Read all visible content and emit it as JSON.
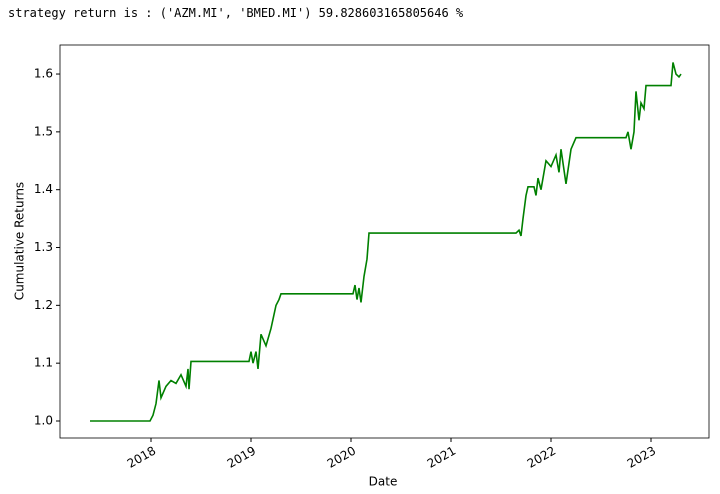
{
  "output_text": "strategy return is : ('AZM.MI', 'BMED.MI') 59.828603165805646 %",
  "chart_data": {
    "type": "line",
    "xlabel": "Date",
    "ylabel": "Cumulative Returns",
    "x": [
      2017.39,
      2017.99,
      2018.02,
      2018.05,
      2018.08,
      2018.1,
      2018.15,
      2018.2,
      2018.25,
      2018.3,
      2018.35,
      2018.37,
      2018.38,
      2018.4,
      2018.98,
      2019.0,
      2019.02,
      2019.05,
      2019.07,
      2019.1,
      2019.15,
      2019.2,
      2019.25,
      2019.28,
      2019.3,
      2020.02,
      2020.04,
      2020.06,
      2020.08,
      2020.1,
      2020.13,
      2020.16,
      2020.18,
      2021.65,
      2021.68,
      2021.7,
      2021.72,
      2021.75,
      2021.77,
      2021.83,
      2021.85,
      2021.87,
      2021.9,
      2021.95,
      2022.0,
      2022.05,
      2022.08,
      2022.1,
      2022.15,
      2022.2,
      2022.25,
      2022.75,
      2022.77,
      2022.8,
      2022.83,
      2022.85,
      2022.88,
      2022.9,
      2022.93,
      2022.95,
      2023.2,
      2023.22,
      2023.25,
      2023.28,
      2023.3
    ],
    "series": [
      {
        "name": "Cumulative Returns",
        "color": "#008000",
        "values": [
          1.0,
          1.0,
          1.01,
          1.03,
          1.07,
          1.04,
          1.06,
          1.07,
          1.065,
          1.08,
          1.06,
          1.09,
          1.055,
          1.103,
          1.103,
          1.12,
          1.1,
          1.12,
          1.09,
          1.15,
          1.13,
          1.16,
          1.2,
          1.21,
          1.22,
          1.22,
          1.235,
          1.21,
          1.23,
          1.205,
          1.25,
          1.28,
          1.325,
          1.325,
          1.33,
          1.32,
          1.35,
          1.39,
          1.405,
          1.405,
          1.39,
          1.42,
          1.4,
          1.45,
          1.44,
          1.46,
          1.43,
          1.47,
          1.41,
          1.47,
          1.49,
          1.49,
          1.5,
          1.47,
          1.5,
          1.57,
          1.52,
          1.55,
          1.54,
          1.58,
          1.58,
          1.62,
          1.6,
          1.595,
          1.6
        ]
      }
    ],
    "xlim": [
      2017.09,
      2023.58
    ],
    "xticks": [
      2018,
      2019,
      2020,
      2021,
      2022,
      2023
    ],
    "ylim": [
      0.9706,
      1.6502
    ],
    "yticks": [
      {
        "value": 1,
        "label": "1.0"
      },
      1.1,
      1.2,
      1.3,
      1.4,
      1.5,
      1.6
    ]
  }
}
